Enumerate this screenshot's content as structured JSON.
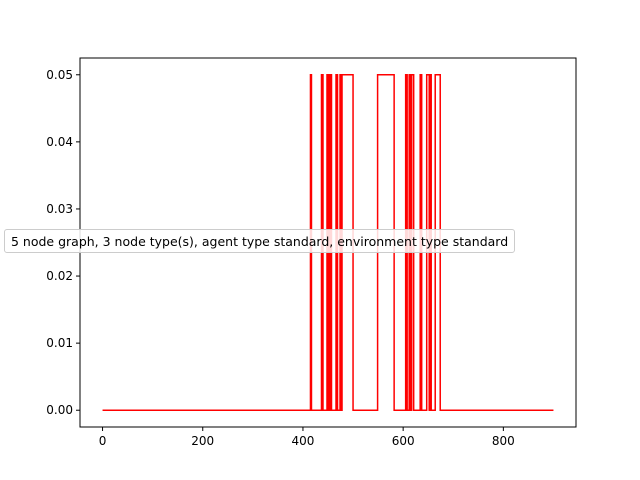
{
  "chart_data": {
    "type": "line",
    "title": "",
    "xlabel": "",
    "ylabel": "",
    "xlim": [
      -45,
      945
    ],
    "ylim": [
      -0.0025,
      0.0525
    ],
    "x_ticks": [
      0,
      200,
      400,
      600,
      800
    ],
    "y_ticks": [
      0.0,
      0.01,
      0.02,
      0.03,
      0.04,
      0.05
    ],
    "x_tick_labels": [
      "0",
      "200",
      "400",
      "600",
      "800"
    ],
    "y_tick_labels": [
      "0.00",
      "0.01",
      "0.02",
      "0.03",
      "0.04",
      "0.05"
    ],
    "grid": false,
    "legend_placement": "center-left",
    "series": [
      {
        "name": "5 node graph, 3 node type(s), agent type standard, environment type standard",
        "color": "#ff0000",
        "step": true,
        "pulses": [
          [
            415,
            417
          ],
          [
            437,
            440
          ],
          [
            448,
            451
          ],
          [
            454,
            457
          ],
          [
            466,
            469
          ],
          [
            474,
            477
          ],
          [
            478,
            500
          ],
          [
            549,
            582
          ],
          [
            605,
            608
          ],
          [
            612,
            614
          ],
          [
            617,
            621
          ],
          [
            634,
            637
          ],
          [
            647,
            652
          ],
          [
            654,
            656
          ],
          [
            664,
            674
          ]
        ],
        "high_value": 0.05,
        "low_value": 0.0,
        "x_start": 0,
        "x_end": 900
      }
    ]
  }
}
